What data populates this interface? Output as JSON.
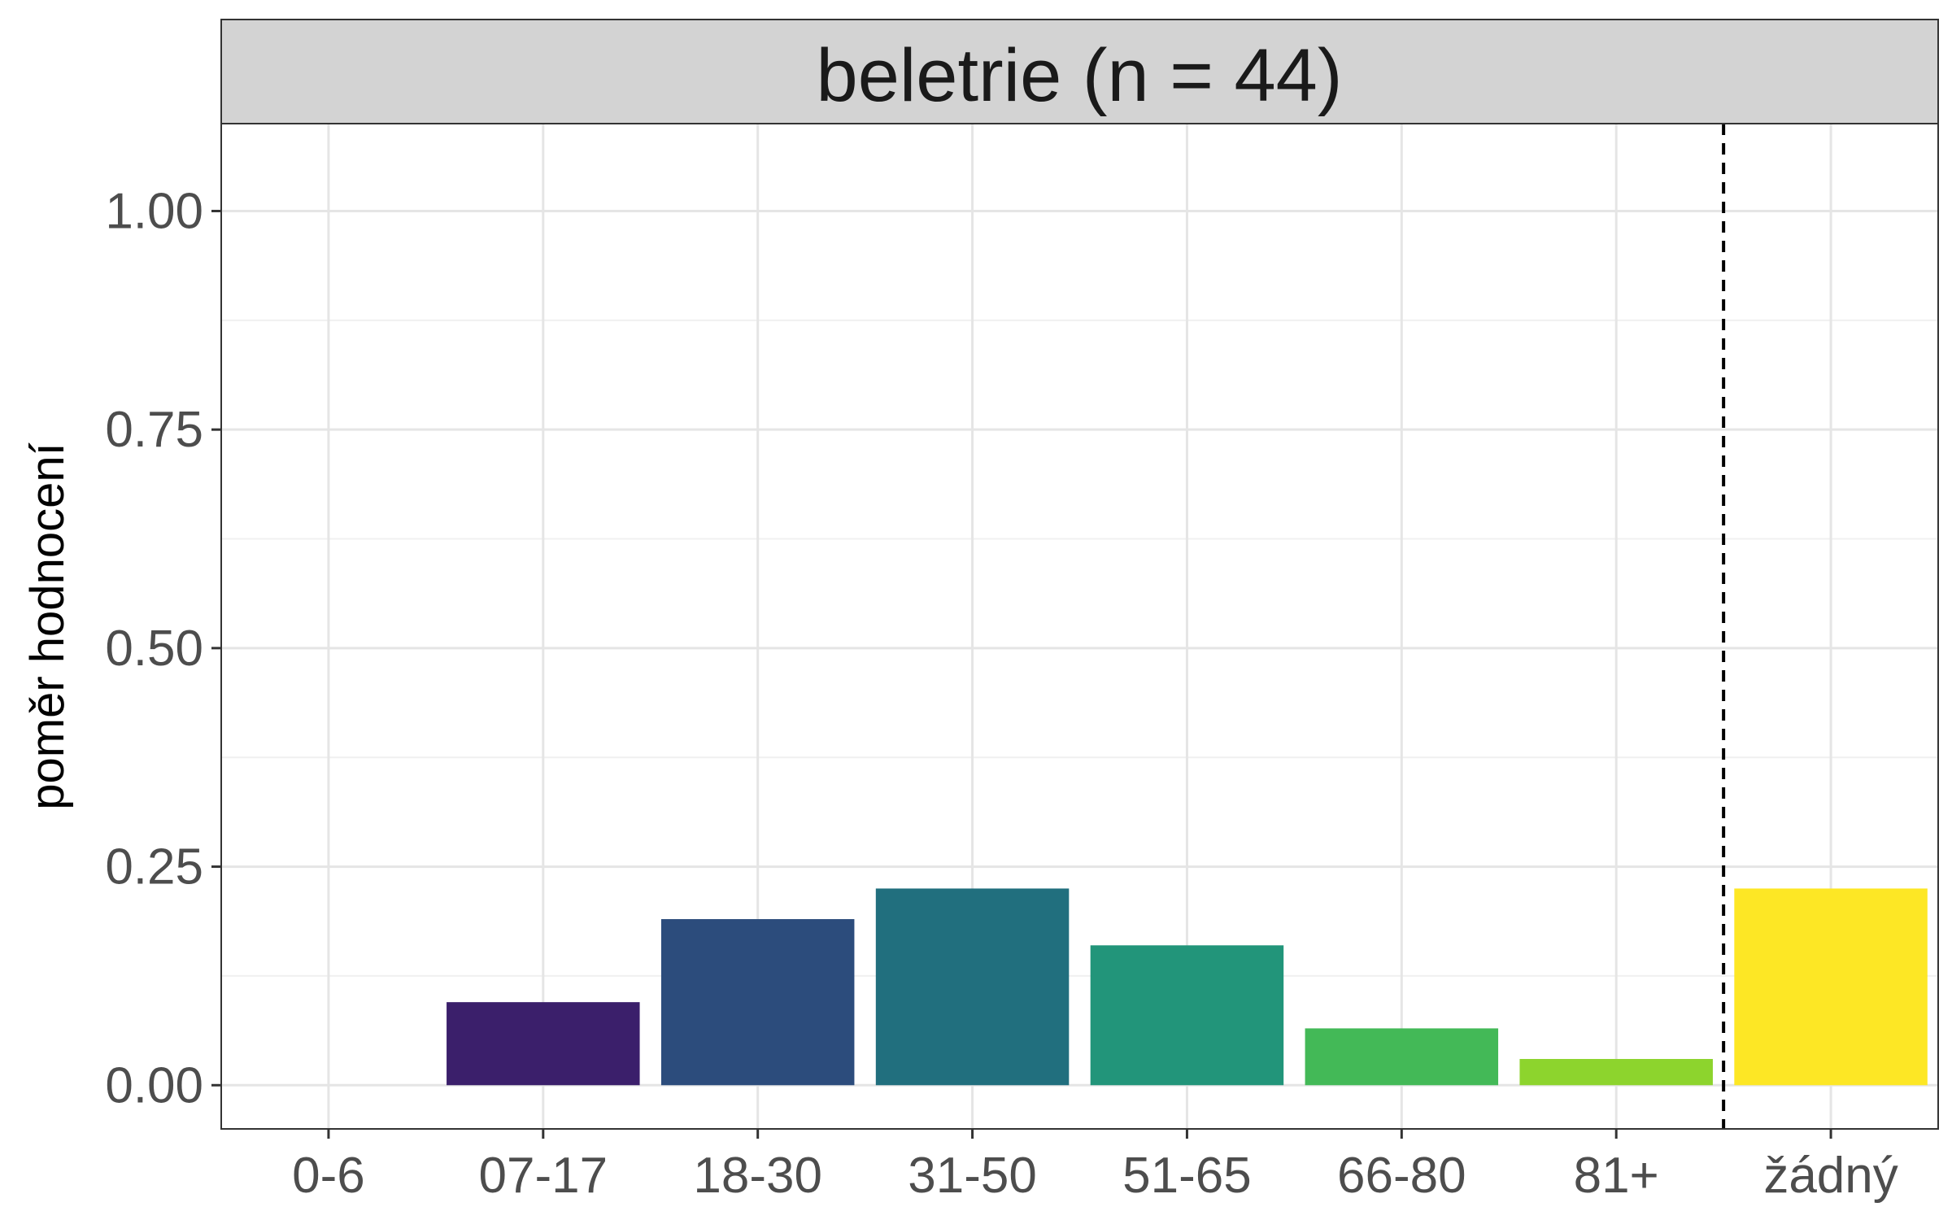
{
  "chart_data": {
    "type": "bar",
    "facet_title": "beletrie (n = 44)",
    "xlabel": "",
    "ylabel": "poměr hodnocení",
    "categories": [
      "0-6",
      "07-17",
      "18-30",
      "31-50",
      "51-65",
      "66-80",
      "81+",
      "žádný"
    ],
    "values": [
      0.0,
      0.095,
      0.19,
      0.225,
      0.16,
      0.065,
      0.03,
      0.225
    ],
    "colors": [
      "#440154",
      "#3b1f6b",
      "#2c4c7c",
      "#216f7e",
      "#22957a",
      "#43b957",
      "#8dd42d",
      "#fde725"
    ],
    "ylim": [
      -0.05,
      1.1
    ],
    "yticks": [
      0.0,
      0.25,
      0.5,
      0.75,
      1.0
    ],
    "ytick_labels": [
      "0.00",
      "0.25",
      "0.50",
      "0.75",
      "1.00"
    ],
    "reference_line": {
      "between": [
        "81+",
        "žádný"
      ],
      "style": "dashed"
    },
    "grid": true,
    "legend": "none"
  }
}
